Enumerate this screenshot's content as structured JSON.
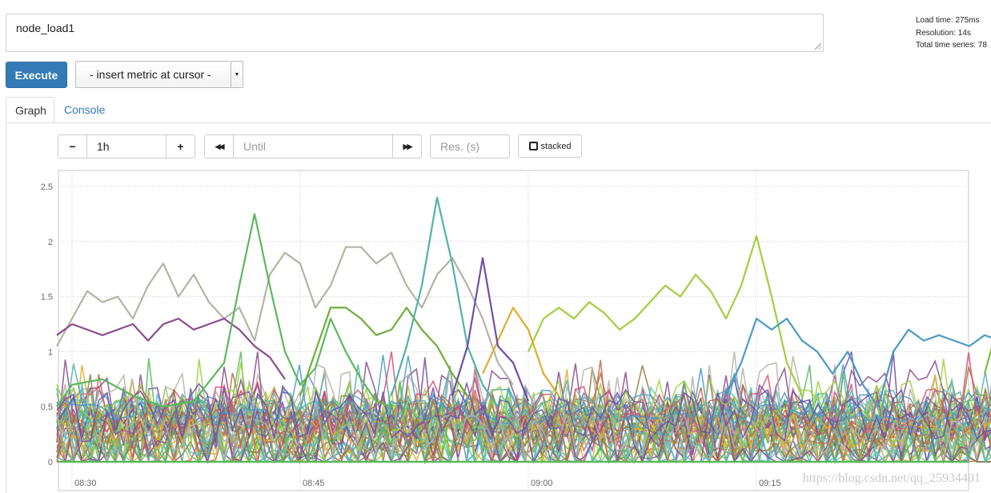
{
  "query": {
    "expression": "node_load1"
  },
  "stats": {
    "load_time": "Load time: 275ms",
    "resolution": "Resolution: 14s",
    "total_series": "Total time series: 78"
  },
  "toolbar": {
    "execute_label": "Execute",
    "insert_metric_label": "- insert metric at cursor -"
  },
  "tabs": [
    {
      "label": "Graph",
      "active": true
    },
    {
      "label": "Console",
      "active": false
    }
  ],
  "graph_controls": {
    "decrease_label": "−",
    "range_value": "1h",
    "increase_label": "+",
    "back_label": "◀◀",
    "until_placeholder": "Until",
    "forward_label": "▶▶",
    "resolution_placeholder": "Res. (s)",
    "stacked_label": "stacked"
  },
  "watermark": "https://blog.csdn.net/qq_25934401",
  "chart_data": {
    "type": "line",
    "title": "",
    "xlabel": "",
    "ylabel": "",
    "y_ticks": [
      "0",
      "0.5",
      "1",
      "1.5",
      "2",
      "2.5"
    ],
    "y_tick_values": [
      0,
      0.5,
      1,
      1.5,
      2,
      2.5
    ],
    "ylim": [
      0,
      2.6
    ],
    "x_ticks": [
      "08:30",
      "08:45",
      "09:00",
      "09:15"
    ],
    "x_tick_minutes": [
      30,
      45,
      60,
      75
    ],
    "xlim_minutes": [
      29,
      95
    ],
    "x_unit": "minutes after 08:00",
    "grid": true,
    "series_count": 78,
    "highlighted_series": [
      {
        "color": "#b5b3a8",
        "points": [
          [
            29,
            1.05
          ],
          [
            30,
            1.3
          ],
          [
            31,
            1.55
          ],
          [
            32,
            1.45
          ],
          [
            33,
            1.5
          ],
          [
            34,
            1.3
          ],
          [
            35,
            1.6
          ],
          [
            36,
            1.8
          ],
          [
            37,
            1.5
          ],
          [
            38,
            1.7
          ],
          [
            39,
            1.45
          ],
          [
            40,
            1.3
          ],
          [
            41,
            1.4
          ],
          [
            42,
            1.1
          ],
          [
            43,
            1.7
          ],
          [
            44,
            1.9
          ],
          [
            45,
            1.8
          ],
          [
            46,
            1.4
          ],
          [
            47,
            1.6
          ],
          [
            48,
            1.95
          ],
          [
            49,
            1.95
          ],
          [
            50,
            1.8
          ],
          [
            51,
            1.9
          ],
          [
            52,
            1.6
          ],
          [
            53,
            1.4
          ],
          [
            54,
            1.7
          ],
          [
            55,
            1.85
          ],
          [
            56,
            1.6
          ],
          [
            57,
            1.3
          ],
          [
            58,
            0.9
          ],
          [
            59,
            0.7
          ]
        ]
      },
      {
        "color": "#8b4b8e",
        "points": [
          [
            29,
            1.15
          ],
          [
            30,
            1.25
          ],
          [
            31,
            1.2
          ],
          [
            32,
            1.15
          ],
          [
            33,
            1.2
          ],
          [
            34,
            1.25
          ],
          [
            35,
            1.1
          ],
          [
            36,
            1.25
          ],
          [
            37,
            1.3
          ],
          [
            38,
            1.2
          ],
          [
            39,
            1.25
          ],
          [
            40,
            1.3
          ],
          [
            41,
            1.2
          ],
          [
            42,
            1.05
          ],
          [
            43,
            0.95
          ],
          [
            44,
            0.75
          ]
        ]
      },
      {
        "color": "#5cb85c",
        "points": [
          [
            29,
            0.5
          ],
          [
            30,
            0.7
          ],
          [
            32,
            0.75
          ],
          [
            34,
            0.6
          ],
          [
            36,
            0.5
          ],
          [
            38,
            0.55
          ],
          [
            40,
            0.9
          ],
          [
            41,
            1.6
          ],
          [
            42,
            2.25
          ],
          [
            43,
            1.6
          ],
          [
            44,
            1.0
          ],
          [
            45,
            0.7
          ],
          [
            46,
            0.85
          ],
          [
            47,
            1.3
          ],
          [
            48,
            1.0
          ],
          [
            49,
            0.75
          ],
          [
            50,
            0.55
          ],
          [
            51,
            0.5
          ]
        ]
      },
      {
        "color": "#6fae3a",
        "points": [
          [
            45,
            0.6
          ],
          [
            46,
            1.0
          ],
          [
            47,
            1.4
          ],
          [
            48,
            1.4
          ],
          [
            49,
            1.3
          ],
          [
            50,
            1.15
          ],
          [
            51,
            1.2
          ],
          [
            52,
            1.4
          ],
          [
            53,
            1.2
          ],
          [
            54,
            1.05
          ],
          [
            55,
            0.8
          ],
          [
            56,
            0.6
          ]
        ]
      },
      {
        "color": "#4fb3a9",
        "points": [
          [
            51,
            0.6
          ],
          [
            52,
            1.05
          ],
          [
            53,
            1.6
          ],
          [
            54,
            2.4
          ],
          [
            55,
            1.8
          ],
          [
            56,
            1.05
          ],
          [
            57,
            0.7
          ],
          [
            58,
            0.5
          ]
        ]
      },
      {
        "color": "#9fcf3f",
        "points": [
          [
            60,
            1.0
          ],
          [
            61,
            1.3
          ],
          [
            62,
            1.4
          ],
          [
            63,
            1.3
          ],
          [
            64,
            1.45
          ],
          [
            65,
            1.35
          ],
          [
            66,
            1.2
          ],
          [
            67,
            1.3
          ],
          [
            68,
            1.45
          ],
          [
            69,
            1.6
          ],
          [
            70,
            1.5
          ],
          [
            71,
            1.7
          ],
          [
            72,
            1.55
          ],
          [
            73,
            1.3
          ],
          [
            74,
            1.6
          ],
          [
            75,
            2.05
          ],
          [
            76,
            1.5
          ],
          [
            77,
            0.9
          ],
          [
            78,
            0.6
          ]
        ]
      },
      {
        "color": "#e0ad2a",
        "points": [
          [
            57,
            0.8
          ],
          [
            58,
            1.1
          ],
          [
            59,
            1.4
          ],
          [
            60,
            1.2
          ],
          [
            61,
            0.8
          ],
          [
            62,
            0.6
          ]
        ]
      },
      {
        "color": "#6e4fa8",
        "points": [
          [
            55,
            0.6
          ],
          [
            56,
            1.05
          ],
          [
            57,
            1.85
          ],
          [
            58,
            1.05
          ],
          [
            59,
            0.9
          ],
          [
            60,
            0.55
          ]
        ]
      },
      {
        "color": "#4a9bc4",
        "points": [
          [
            73,
            0.6
          ],
          [
            74,
            0.9
          ],
          [
            75,
            1.3
          ],
          [
            76,
            1.2
          ],
          [
            77,
            1.3
          ],
          [
            78,
            1.1
          ],
          [
            79,
            1.0
          ],
          [
            80,
            0.8
          ],
          [
            81,
            1.0
          ],
          [
            82,
            0.7
          ],
          [
            83,
            0.5
          ],
          [
            84,
            1.0
          ],
          [
            85,
            1.2
          ],
          [
            86,
            1.1
          ],
          [
            87,
            1.15
          ],
          [
            88,
            1.1
          ],
          [
            89,
            1.05
          ],
          [
            90,
            1.15
          ],
          [
            91,
            1.1
          ],
          [
            92,
            1.2
          ],
          [
            93,
            1.15
          ],
          [
            94,
            1.1
          ]
        ]
      },
      {
        "color": "#7ebd3c",
        "points": [
          [
            90,
            0.8
          ],
          [
            91,
            1.3
          ],
          [
            92,
            0.8
          ],
          [
            93,
            0.6
          ],
          [
            94,
            0.7
          ]
        ]
      }
    ],
    "noise_series_colors": [
      "#5cb85c",
      "#e0ad2a",
      "#4fb3a9",
      "#8b4b8e",
      "#9fcf3f",
      "#c06b4a",
      "#4a9bc4",
      "#b5b3a8",
      "#6e4fa8",
      "#d94f70",
      "#8c7f3f",
      "#53c4c9"
    ]
  }
}
